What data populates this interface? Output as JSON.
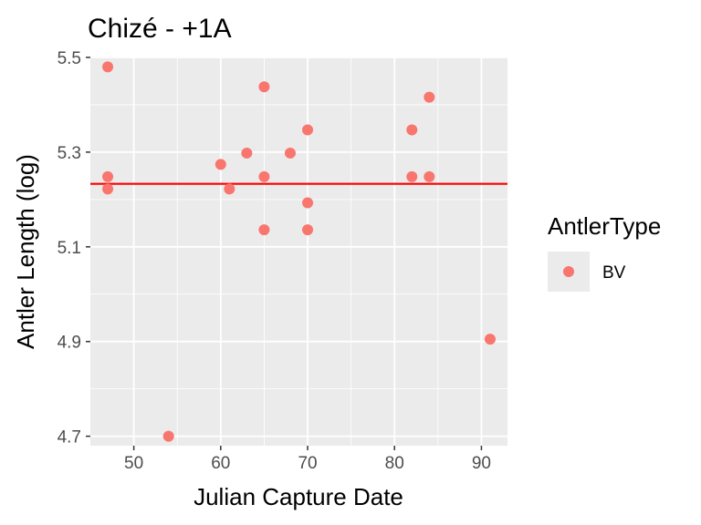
{
  "chart_data": {
    "type": "scatter",
    "title": "Chizé - +1A",
    "xlabel": "Julian Capture Date",
    "ylabel": "Antler Length (log)",
    "xlim": [
      45,
      93
    ],
    "ylim": [
      4.68,
      5.5
    ],
    "x_ticks": [
      50,
      60,
      70,
      80,
      90
    ],
    "x_tick_labels": [
      "50",
      "60",
      "70",
      "80",
      "90"
    ],
    "y_ticks": [
      4.7,
      4.9,
      5.1,
      5.3,
      5.5
    ],
    "y_tick_labels": [
      "4.7",
      "4.9",
      "5.1",
      "5.3",
      "5.5"
    ],
    "grid": true,
    "reference_line": {
      "y": 5.233,
      "color": "#ff0000"
    },
    "legend": {
      "title": "AntlerType",
      "position": "right",
      "entries": [
        {
          "label": "BV",
          "color": "#F8766D"
        }
      ]
    },
    "series": [
      {
        "name": "BV",
        "color": "#F8766D",
        "points": [
          {
            "x": 47,
            "y": 5.48
          },
          {
            "x": 47,
            "y": 5.248
          },
          {
            "x": 47,
            "y": 5.222
          },
          {
            "x": 54,
            "y": 4.7
          },
          {
            "x": 60,
            "y": 5.274
          },
          {
            "x": 61,
            "y": 5.222
          },
          {
            "x": 63,
            "y": 5.298
          },
          {
            "x": 65,
            "y": 5.438
          },
          {
            "x": 65,
            "y": 5.248
          },
          {
            "x": 65,
            "y": 5.136
          },
          {
            "x": 68,
            "y": 5.298
          },
          {
            "x": 70,
            "y": 5.347
          },
          {
            "x": 70,
            "y": 5.193
          },
          {
            "x": 70,
            "y": 5.136
          },
          {
            "x": 82,
            "y": 5.347
          },
          {
            "x": 82,
            "y": 5.248
          },
          {
            "x": 84,
            "y": 5.416
          },
          {
            "x": 84,
            "y": 5.248
          },
          {
            "x": 91,
            "y": 4.905
          }
        ]
      }
    ]
  }
}
